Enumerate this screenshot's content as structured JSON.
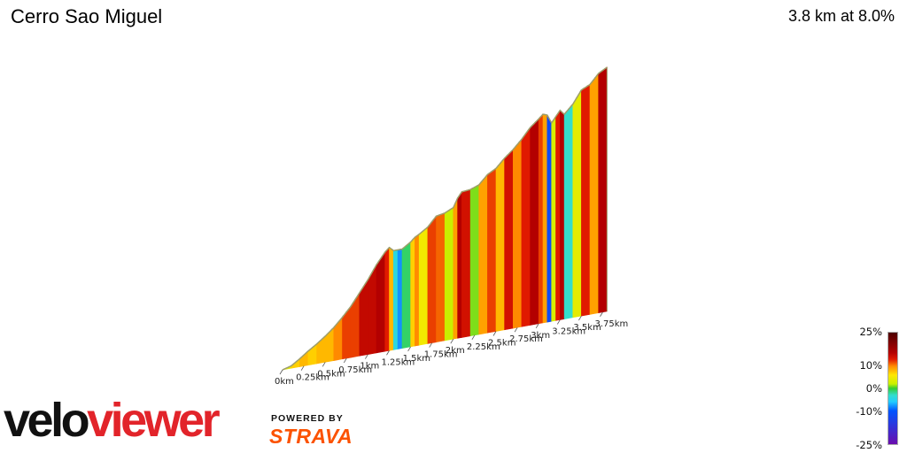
{
  "header": {
    "title": "Cerro Sao Miguel",
    "summary": "3.8 km at 8.0%"
  },
  "chart_data": {
    "type": "area",
    "title": "Cerro Sao Miguel",
    "subtitle": "3.8 km at 8.0%",
    "xlabel": "",
    "ylabel": "",
    "x_unit": "km",
    "x_ticks": [
      "0km",
      "0.25km",
      "0.5km",
      "0.75km",
      "1km",
      "1.25km",
      "1.5km",
      "1.75km",
      "2km",
      "2.25km",
      "2.5km",
      "2.75km",
      "3km",
      "3.25km",
      "3.5km",
      "3.75km"
    ],
    "xlim": [
      0,
      3.8
    ],
    "relative_elevation_m": {
      "x": [
        0,
        0.1,
        0.2,
        0.3,
        0.4,
        0.5,
        0.6,
        0.7,
        0.8,
        0.9,
        1.0,
        1.1,
        1.2,
        1.25,
        1.3,
        1.4,
        1.5,
        1.55,
        1.6,
        1.7,
        1.8,
        1.9,
        2.0,
        2.05,
        2.1,
        2.2,
        2.3,
        2.4,
        2.5,
        2.6,
        2.7,
        2.8,
        2.9,
        3.0,
        3.05,
        3.1,
        3.15,
        3.2,
        3.25,
        3.3,
        3.4,
        3.5,
        3.6,
        3.7,
        3.8
      ],
      "y": [
        0,
        3,
        10,
        18,
        25,
        33,
        42,
        53,
        65,
        80,
        95,
        112,
        126,
        131,
        126,
        126,
        133,
        138,
        141,
        148,
        160,
        162,
        167,
        178,
        185,
        186,
        190,
        201,
        207,
        218,
        227,
        238,
        251,
        260,
        265,
        263,
        252,
        259,
        266,
        260,
        271,
        287,
        292,
        304,
        310
      ]
    },
    "gradient_stripes": {
      "x_start": [
        0,
        0.1,
        0.2,
        0.3,
        0.4,
        0.5,
        0.6,
        0.7,
        0.8,
        0.9,
        1.0,
        1.1,
        1.2,
        1.25,
        1.3,
        1.35,
        1.4,
        1.5,
        1.55,
        1.6,
        1.7,
        1.8,
        1.9,
        2.0,
        2.05,
        2.1,
        2.2,
        2.3,
        2.4,
        2.5,
        2.6,
        2.7,
        2.8,
        2.9,
        3.0,
        3.05,
        3.1,
        3.15,
        3.2,
        3.25,
        3.3,
        3.4,
        3.5,
        3.6,
        3.7
      ],
      "gradient_pct": [
        4,
        7,
        8,
        7,
        8,
        8,
        10,
        12,
        12,
        15,
        15,
        16,
        13,
        8,
        -4,
        -8,
        -1,
        7,
        10,
        5,
        12,
        11,
        2,
        9,
        16,
        14,
        1,
        9,
        12,
        8,
        14,
        10,
        13,
        16,
        12,
        9,
        -12,
        3,
        13,
        16,
        -3,
        4,
        13,
        9,
        16
      ]
    },
    "legend": {
      "type": "colorbar",
      "placement": "bottom-right",
      "labels": [
        "25%",
        "10%",
        "0%",
        "-10%",
        "-25%"
      ],
      "stops": [
        {
          "value": 25,
          "color": "#4d0000"
        },
        {
          "value": 16,
          "color": "#b30000"
        },
        {
          "value": 13,
          "color": "#e01a00"
        },
        {
          "value": 10,
          "color": "#ff8a00"
        },
        {
          "value": 6,
          "color": "#ffe600"
        },
        {
          "value": 2,
          "color": "#c9f000"
        },
        {
          "value": 0,
          "color": "#33cc33"
        },
        {
          "value": -3,
          "color": "#33ddcc"
        },
        {
          "value": -6,
          "color": "#22ccff"
        },
        {
          "value": -10,
          "color": "#0055ff"
        },
        {
          "value": -25,
          "color": "#6a0dad"
        }
      ]
    }
  },
  "branding": {
    "logo_velo": "velo",
    "logo_viewer": "viewer",
    "powered_by": "POWERED BY",
    "strava": "STRAVA"
  },
  "colors": {
    "outline": "#9e9e6a",
    "brand_red": "#e2242a",
    "strava_orange": "#fc5200"
  }
}
